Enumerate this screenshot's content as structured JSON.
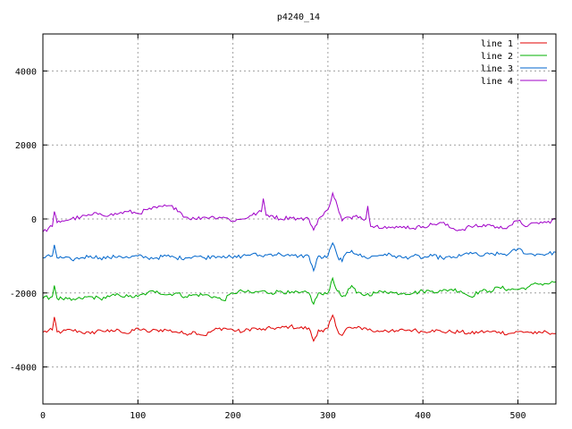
{
  "chart_data": {
    "type": "line",
    "title": "p4240_14",
    "xlabel": "",
    "ylabel": "",
    "xlim": [
      0,
      540
    ],
    "ylim": [
      -5000,
      5000
    ],
    "x_ticks": [
      0,
      100,
      200,
      300,
      400,
      500
    ],
    "y_ticks": [
      -4000,
      -2000,
      0,
      2000,
      4000
    ],
    "grid": true,
    "legend_position": "top-right",
    "series": [
      {
        "name": "line 1",
        "color": "#e00000",
        "x": [
          0,
          10,
          12,
          15,
          20,
          30,
          40,
          50,
          60,
          70,
          80,
          90,
          100,
          110,
          120,
          130,
          140,
          150,
          160,
          170,
          180,
          190,
          200,
          210,
          220,
          230,
          240,
          250,
          260,
          270,
          280,
          285,
          290,
          295,
          300,
          305,
          310,
          315,
          320,
          325,
          330,
          340,
          350,
          360,
          370,
          380,
          390,
          400,
          410,
          420,
          430,
          440,
          450,
          460,
          470,
          480,
          490,
          500,
          510,
          520,
          530,
          540
        ],
        "y": [
          -3060,
          -3000,
          -2650,
          -3050,
          -3050,
          -3000,
          -3050,
          -3100,
          -3000,
          -3050,
          -3000,
          -3100,
          -2950,
          -3050,
          -3000,
          -3000,
          -3050,
          -3100,
          -3050,
          -3150,
          -3000,
          -2950,
          -3000,
          -3050,
          -2950,
          -3000,
          -2950,
          -2950,
          -2900,
          -2950,
          -2950,
          -3300,
          -3000,
          -3050,
          -2950,
          -2600,
          -3000,
          -3150,
          -2950,
          -2950,
          -2950,
          -2950,
          -3050,
          -3000,
          -3050,
          -3000,
          -3000,
          -3050,
          -3000,
          -3050,
          -3050,
          -3050,
          -3100,
          -3050,
          -3050,
          -3050,
          -3100,
          -3050,
          -3050,
          -3100,
          -3050,
          -3100
        ]
      },
      {
        "name": "line 2",
        "color": "#00b000",
        "x": [
          0,
          10,
          12,
          15,
          20,
          30,
          40,
          50,
          60,
          70,
          80,
          90,
          100,
          110,
          120,
          130,
          140,
          150,
          160,
          170,
          180,
          190,
          200,
          210,
          220,
          230,
          240,
          250,
          260,
          270,
          280,
          285,
          290,
          295,
          300,
          305,
          310,
          315,
          320,
          325,
          330,
          340,
          350,
          360,
          370,
          380,
          390,
          400,
          410,
          420,
          430,
          440,
          450,
          460,
          470,
          480,
          490,
          500,
          510,
          520,
          530,
          540
        ],
        "y": [
          -2150,
          -2100,
          -1800,
          -2150,
          -2150,
          -2200,
          -2150,
          -2100,
          -2150,
          -2100,
          -2050,
          -2100,
          -2100,
          -2000,
          -1950,
          -2050,
          -2000,
          -2100,
          -2050,
          -2050,
          -2100,
          -2200,
          -2000,
          -1950,
          -2000,
          -1950,
          -2000,
          -1950,
          -2000,
          -2000,
          -2000,
          -2300,
          -2000,
          -2050,
          -2000,
          -1600,
          -1950,
          -2100,
          -2000,
          -1800,
          -2000,
          -2050,
          -2000,
          -1950,
          -2000,
          -2000,
          -2000,
          -1950,
          -1950,
          -1950,
          -1900,
          -1950,
          -2100,
          -1950,
          -1950,
          -1850,
          -1900,
          -1900,
          -1850,
          -1750,
          -1750,
          -1700
        ]
      },
      {
        "name": "line 3",
        "color": "#0066cc",
        "x": [
          0,
          10,
          12,
          15,
          20,
          30,
          40,
          50,
          60,
          70,
          80,
          90,
          100,
          110,
          120,
          130,
          140,
          150,
          160,
          170,
          180,
          190,
          200,
          210,
          220,
          230,
          240,
          250,
          260,
          270,
          280,
          285,
          290,
          295,
          300,
          305,
          310,
          315,
          320,
          325,
          330,
          340,
          350,
          360,
          370,
          380,
          390,
          400,
          410,
          420,
          430,
          440,
          450,
          460,
          470,
          480,
          490,
          500,
          510,
          520,
          530,
          540
        ],
        "y": [
          -1050,
          -1000,
          -700,
          -1050,
          -1050,
          -1100,
          -1050,
          -1000,
          -1050,
          -1050,
          -1000,
          -1050,
          -1000,
          -1050,
          -1050,
          -1000,
          -1050,
          -1050,
          -1000,
          -1050,
          -1000,
          -1000,
          -1050,
          -1000,
          -950,
          -1000,
          -950,
          -950,
          -1000,
          -1000,
          -1000,
          -1400,
          -1000,
          -1050,
          -1000,
          -650,
          -1000,
          -1150,
          -900,
          -850,
          -950,
          -1050,
          -1000,
          -950,
          -1000,
          -1050,
          -1000,
          -1050,
          -1000,
          -1050,
          -1050,
          -1000,
          -900,
          -1000,
          -950,
          -950,
          -950,
          -800,
          -950,
          -950,
          -950,
          -900
        ]
      },
      {
        "name": "line 4",
        "color": "#a000c8",
        "x": [
          0,
          10,
          12,
          15,
          20,
          30,
          40,
          50,
          60,
          70,
          80,
          90,
          100,
          110,
          120,
          130,
          140,
          150,
          160,
          170,
          180,
          190,
          200,
          210,
          220,
          230,
          232,
          235,
          240,
          250,
          260,
          270,
          280,
          285,
          290,
          295,
          300,
          305,
          310,
          315,
          320,
          325,
          330,
          340,
          342,
          345,
          350,
          360,
          370,
          380,
          390,
          400,
          410,
          420,
          430,
          440,
          450,
          460,
          470,
          480,
          490,
          500,
          510,
          520,
          530,
          540
        ],
        "y": [
          -350,
          -200,
          200,
          -100,
          -50,
          0,
          50,
          100,
          150,
          100,
          150,
          200,
          150,
          250,
          300,
          350,
          300,
          50,
          0,
          50,
          50,
          50,
          -50,
          0,
          100,
          200,
          550,
          100,
          100,
          0,
          50,
          0,
          0,
          -300,
          0,
          100,
          250,
          700,
          350,
          -50,
          50,
          0,
          100,
          0,
          350,
          -200,
          -200,
          -200,
          -250,
          -200,
          -250,
          -200,
          -150,
          -100,
          -250,
          -300,
          -200,
          -200,
          -150,
          -250,
          -200,
          -50,
          -200,
          -100,
          -100,
          0
        ]
      }
    ]
  }
}
